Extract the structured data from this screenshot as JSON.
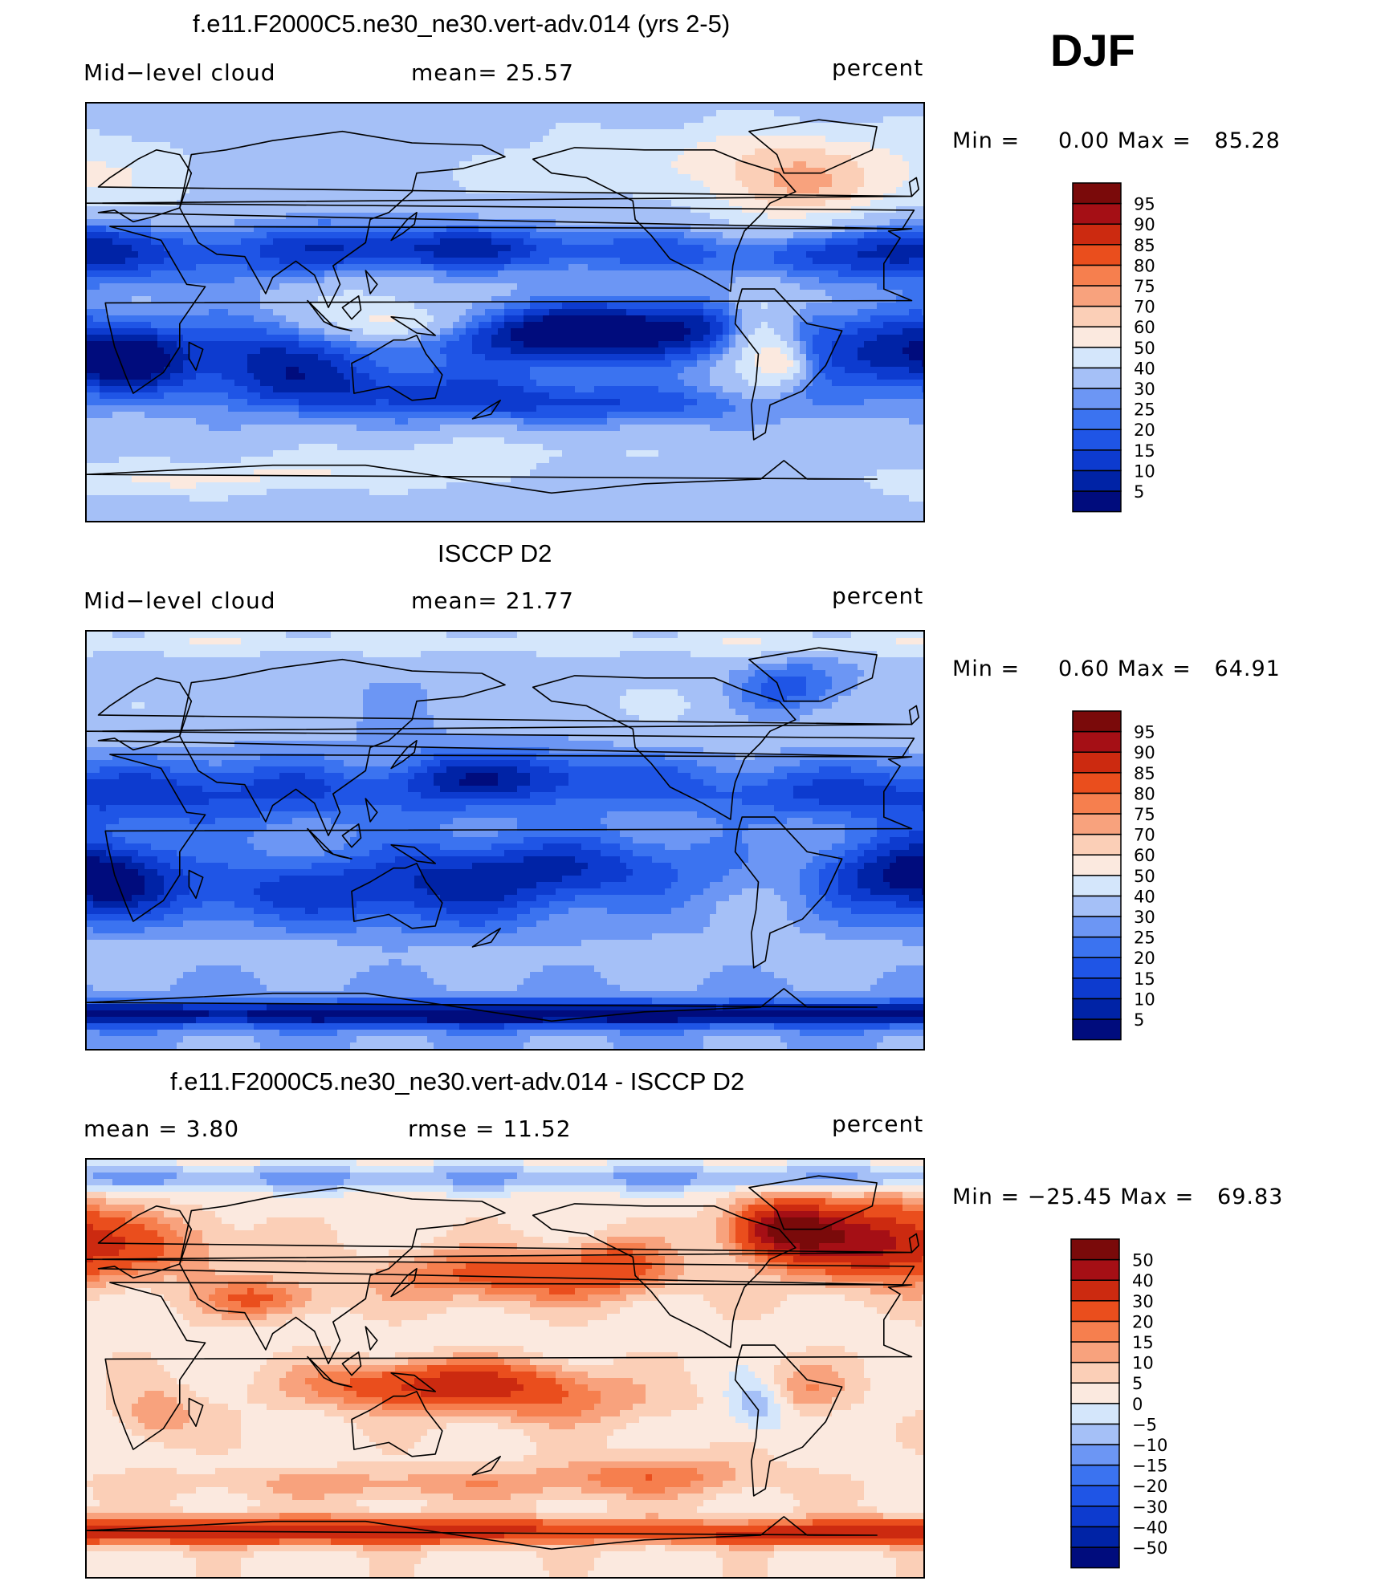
{
  "season": "DJF",
  "panels": [
    {
      "title": "f.e11.F2000C5.ne30_ne30.vert-adv.014 (yrs 2-5)",
      "left_label": "Mid−level cloud",
      "center_label": "mean=   25.57",
      "right_label": "percent",
      "min_label": "Min =",
      "min_value": "0.00",
      "max_label": "Max =",
      "max_value": "85.28"
    },
    {
      "title": "ISCCP D2",
      "left_label": "Mid−level cloud",
      "center_label": "mean=   21.77",
      "right_label": "percent",
      "min_label": "Min =",
      "min_value": "0.60",
      "max_label": "Max =",
      "max_value": "64.91"
    },
    {
      "title": "f.e11.F2000C5.ne30_ne30.vert-adv.014 - ISCCP D2",
      "left_label": "mean =     3.80",
      "center_label": "rmse =   11.52",
      "right_label": "percent",
      "min_label": "Min =",
      "min_value": "−25.45",
      "max_label": "Max =",
      "max_value": "69.83"
    }
  ],
  "chart_data": [
    {
      "type": "heatmap",
      "title": "f.e11.F2000C5.ne30_ne30.vert-adv.014 (yrs 2-5)",
      "variable": "Mid-level cloud",
      "units": "percent",
      "mean": 25.57,
      "min": 0.0,
      "max": 85.28,
      "colorbar_levels": [
        5,
        10,
        15,
        20,
        25,
        30,
        40,
        50,
        60,
        70,
        75,
        80,
        85,
        90,
        95
      ],
      "colorbar_colors": [
        "#000c7d",
        "#0023a6",
        "#0d3bcf",
        "#1f55e6",
        "#3b73f0",
        "#6c96f4",
        "#a5c0f7",
        "#d4e6fb",
        "#fbe9df",
        "#fbcfb7",
        "#f8a27d",
        "#f67f4e",
        "#ea4e1d",
        "#cc2a10",
        "#a50f15",
        "#7a0a0a"
      ]
    },
    {
      "type": "heatmap",
      "title": "ISCCP D2",
      "variable": "Mid-level cloud",
      "units": "percent",
      "mean": 21.77,
      "min": 0.6,
      "max": 64.91,
      "colorbar_levels": [
        5,
        10,
        15,
        20,
        25,
        30,
        40,
        50,
        60,
        70,
        75,
        80,
        85,
        90,
        95
      ],
      "colorbar_colors": [
        "#000c7d",
        "#0023a6",
        "#0d3bcf",
        "#1f55e6",
        "#3b73f0",
        "#6c96f4",
        "#a5c0f7",
        "#d4e6fb",
        "#fbe9df",
        "#fbcfb7",
        "#f8a27d",
        "#f67f4e",
        "#ea4e1d",
        "#cc2a10",
        "#a50f15",
        "#7a0a0a"
      ]
    },
    {
      "type": "heatmap",
      "title": "f.e11.F2000C5.ne30_ne30.vert-adv.014 - ISCCP D2",
      "units": "percent",
      "mean": 3.8,
      "rmse": 11.52,
      "min": -25.45,
      "max": 69.83,
      "colorbar_levels": [
        -50,
        -40,
        -30,
        -20,
        -15,
        -10,
        -5,
        0,
        5,
        10,
        15,
        20,
        30,
        40,
        50
      ],
      "colorbar_colors": [
        "#000c7d",
        "#0023a6",
        "#0d3bcf",
        "#1f55e6",
        "#3b73f0",
        "#6c96f4",
        "#a5c0f7",
        "#d4e6fb",
        "#fbe9df",
        "#fbcfb7",
        "#f8a27d",
        "#f67f4e",
        "#ea4e1d",
        "#cc2a10",
        "#a50f15",
        "#7a0a0a"
      ]
    }
  ]
}
